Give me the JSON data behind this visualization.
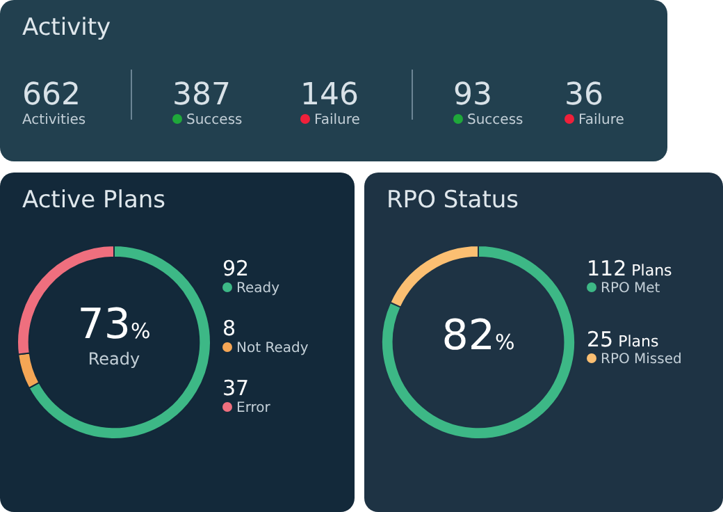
{
  "chart_data": [
    {
      "type": "other",
      "title": "Activity",
      "categories": [
        "Activities",
        "Success",
        "Failure",
        "Success",
        "Failure"
      ],
      "values": [
        662,
        387,
        146,
        93,
        36
      ],
      "colors": [
        null,
        "#1fa83a",
        "#f0203a",
        "#1fa83a",
        "#f0203a"
      ],
      "data_labels": true
    },
    {
      "type": "donut",
      "title": "Active Plans",
      "categories": [
        "Ready",
        "Not Ready",
        "Error"
      ],
      "values": [
        92,
        8,
        37
      ],
      "colors": [
        "#3db886",
        "#f5a655",
        "#ef6f7e"
      ],
      "data_labels": true,
      "legend": "right",
      "annotations": [
        "73%",
        "Ready"
      ]
    },
    {
      "type": "donut",
      "title": "RPO Status",
      "categories": [
        "RPO Met",
        "RPO Missed"
      ],
      "values": [
        112,
        25
      ],
      "colors": [
        "#3db886",
        "#fbbf72"
      ],
      "value_labels": [
        "112 Plans",
        "25 Plans"
      ],
      "legend": "right",
      "annotations": [
        "82%"
      ]
    }
  ]
}
